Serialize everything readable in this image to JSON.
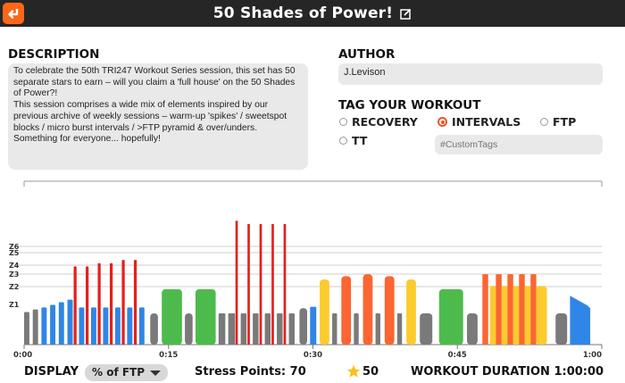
{
  "header": {
    "title": "50 Shades of Power!",
    "back_icon": "back-arrow-icon",
    "edit_icon": "edit-icon",
    "accent": "#fc6719"
  },
  "description": {
    "label": "DESCRIPTION",
    "text": "To celebrate the 50th TRI247 Workout Series session, this set has 50 separate stars to earn – will you claim a 'full house' on the 50 Shades of Power?!\nThis session comprises a wide mix of elements inspired by our previous archive of weekly sessions – warm-up 'spikes' / sweetspot blocks / micro burst intervals / >FTP pyramid & over/unders. Something for everyone... hopefully!"
  },
  "author": {
    "label": "AUTHOR",
    "value": "J.Levison"
  },
  "tags": {
    "label": "TAG YOUR WORKOUT",
    "options": [
      {
        "label": "RECOVERY",
        "selected": false
      },
      {
        "label": "INTERVALS",
        "selected": true
      },
      {
        "label": "FTP",
        "selected": false
      },
      {
        "label": "TT",
        "selected": false
      }
    ],
    "custom_placeholder": "#CustomTags"
  },
  "chart_data": {
    "type": "bar",
    "zone_labels": [
      "Z6",
      "Z5",
      "Z4",
      "Z3",
      "Z2",
      "Z1"
    ],
    "x_ticks": [
      "0:00",
      "0:15",
      "0:30",
      "0:45",
      "1:00"
    ],
    "x_range_minutes": [
      0,
      60
    ],
    "y_unit": "% of FTP",
    "colors": {
      "grey": "#7a7a7a",
      "blue": "#2f86e6",
      "green": "#4dbb4b",
      "yellow": "#fccb2e",
      "orange": "#fb6632",
      "red": "#e5201d"
    },
    "segments": [
      {
        "start": 0.0,
        "end": 0.55,
        "intensity": 50,
        "color": "grey"
      },
      {
        "start": 0.9,
        "end": 1.45,
        "intensity": 54,
        "color": "grey"
      },
      {
        "start": 1.8,
        "end": 2.35,
        "intensity": 57,
        "color": "blue"
      },
      {
        "start": 2.7,
        "end": 3.25,
        "intensity": 61,
        "color": "blue"
      },
      {
        "start": 3.6,
        "end": 4.15,
        "intensity": 65,
        "color": "blue"
      },
      {
        "start": 4.5,
        "end": 5.05,
        "intensity": 69,
        "color": "blue"
      },
      {
        "start": 5.15,
        "end": 5.45,
        "intensity": 120,
        "color": "red"
      },
      {
        "start": 5.7,
        "end": 6.25,
        "intensity": 57,
        "color": "blue"
      },
      {
        "start": 6.4,
        "end": 6.7,
        "intensity": 120,
        "color": "red"
      },
      {
        "start": 6.95,
        "end": 7.5,
        "intensity": 57,
        "color": "blue"
      },
      {
        "start": 7.65,
        "end": 7.95,
        "intensity": 125,
        "color": "red"
      },
      {
        "start": 8.2,
        "end": 8.75,
        "intensity": 57,
        "color": "blue"
      },
      {
        "start": 8.9,
        "end": 9.2,
        "intensity": 125,
        "color": "red"
      },
      {
        "start": 9.45,
        "end": 10.0,
        "intensity": 57,
        "color": "blue"
      },
      {
        "start": 10.15,
        "end": 10.45,
        "intensity": 130,
        "color": "red"
      },
      {
        "start": 10.7,
        "end": 11.25,
        "intensity": 57,
        "color": "blue"
      },
      {
        "start": 11.4,
        "end": 11.7,
        "intensity": 130,
        "color": "red"
      },
      {
        "start": 11.95,
        "end": 12.5,
        "intensity": 57,
        "color": "blue"
      },
      {
        "start": 13.1,
        "end": 13.9,
        "intensity": 48,
        "color": "grey"
      },
      {
        "start": 14.3,
        "end": 16.4,
        "intensity": 85,
        "color": "green"
      },
      {
        "start": 16.7,
        "end": 17.5,
        "intensity": 48,
        "color": "grey"
      },
      {
        "start": 17.8,
        "end": 19.9,
        "intensity": 85,
        "color": "green"
      },
      {
        "start": 20.2,
        "end": 20.9,
        "intensity": 48,
        "color": "grey"
      },
      {
        "start": 21.2,
        "end": 21.9,
        "intensity": 48,
        "color": "grey"
      },
      {
        "start": 21.95,
        "end": 22.2,
        "intensity": 190,
        "color": "red"
      },
      {
        "start": 22.5,
        "end": 23.1,
        "intensity": 48,
        "color": "grey"
      },
      {
        "start": 23.2,
        "end": 23.45,
        "intensity": 185,
        "color": "red"
      },
      {
        "start": 23.75,
        "end": 24.35,
        "intensity": 48,
        "color": "grey"
      },
      {
        "start": 24.45,
        "end": 24.7,
        "intensity": 185,
        "color": "red"
      },
      {
        "start": 25.0,
        "end": 25.6,
        "intensity": 48,
        "color": "grey"
      },
      {
        "start": 25.7,
        "end": 25.95,
        "intensity": 185,
        "color": "red"
      },
      {
        "start": 26.25,
        "end": 26.85,
        "intensity": 48,
        "color": "grey"
      },
      {
        "start": 26.95,
        "end": 27.2,
        "intensity": 185,
        "color": "red"
      },
      {
        "start": 27.5,
        "end": 28.1,
        "intensity": 48,
        "color": "grey"
      },
      {
        "start": 28.6,
        "end": 29.4,
        "intensity": 56,
        "color": "grey"
      },
      {
        "start": 29.7,
        "end": 30.35,
        "intensity": 58,
        "color": "blue"
      },
      {
        "start": 30.7,
        "end": 31.7,
        "intensity": 100,
        "color": "yellow"
      },
      {
        "start": 32.0,
        "end": 32.5,
        "intensity": 48,
        "color": "grey"
      },
      {
        "start": 32.95,
        "end": 33.95,
        "intensity": 105,
        "color": "orange"
      },
      {
        "start": 34.25,
        "end": 34.75,
        "intensity": 48,
        "color": "grey"
      },
      {
        "start": 35.2,
        "end": 36.2,
        "intensity": 108,
        "color": "orange"
      },
      {
        "start": 36.5,
        "end": 37.0,
        "intensity": 48,
        "color": "grey"
      },
      {
        "start": 37.45,
        "end": 38.45,
        "intensity": 105,
        "color": "orange"
      },
      {
        "start": 38.75,
        "end": 39.25,
        "intensity": 48,
        "color": "grey"
      },
      {
        "start": 39.7,
        "end": 40.7,
        "intensity": 100,
        "color": "yellow"
      },
      {
        "start": 41.1,
        "end": 42.4,
        "intensity": 48,
        "color": "grey"
      },
      {
        "start": 43.1,
        "end": 45.6,
        "intensity": 85,
        "color": "green"
      },
      {
        "start": 46.0,
        "end": 47.1,
        "intensity": 48,
        "color": "grey"
      },
      {
        "start": 47.6,
        "end": 48.2,
        "intensity": 108,
        "color": "orange"
      },
      {
        "start": 48.4,
        "end": 49.0,
        "intensity": 90,
        "color": "yellow"
      },
      {
        "start": 49.0,
        "end": 49.6,
        "intensity": 108,
        "color": "orange"
      },
      {
        "start": 49.6,
        "end": 50.2,
        "intensity": 90,
        "color": "yellow"
      },
      {
        "start": 50.2,
        "end": 50.8,
        "intensity": 108,
        "color": "orange"
      },
      {
        "start": 50.8,
        "end": 51.4,
        "intensity": 90,
        "color": "yellow"
      },
      {
        "start": 51.4,
        "end": 52.0,
        "intensity": 108,
        "color": "orange"
      },
      {
        "start": 52.0,
        "end": 52.6,
        "intensity": 90,
        "color": "yellow"
      },
      {
        "start": 52.6,
        "end": 53.2,
        "intensity": 108,
        "color": "orange"
      },
      {
        "start": 53.2,
        "end": 54.3,
        "intensity": 90,
        "color": "yellow"
      },
      {
        "start": 55.2,
        "end": 56.4,
        "intensity": 48,
        "color": "grey"
      },
      {
        "start": 56.7,
        "end": 58.8,
        "intensity": 75,
        "intensity_end": 60,
        "color": "blue"
      }
    ]
  },
  "footer": {
    "display_label": "DISPLAY",
    "display_value": "% of FTP",
    "stress_points": "Stress Points: 70",
    "star_icon": "star-icon",
    "stars": "50",
    "duration": "WORKOUT DURATION 1:00:00"
  }
}
